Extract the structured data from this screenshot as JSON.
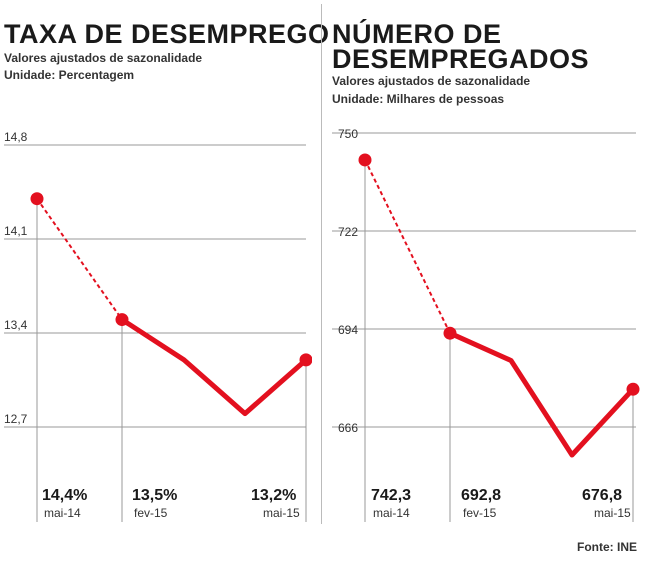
{
  "source": "Fonte: INE",
  "chart_data": [
    {
      "type": "line",
      "title": "TAXA DE DESEMPREGO",
      "subtitle": "Valores ajustados de sazonalidade",
      "unit": "Unidade: Percentagem",
      "y_ticks": [
        "14,8",
        "14,1",
        "13,4",
        "12,7"
      ],
      "ylim": [
        12.7,
        14.8
      ],
      "dashed_until_index": 1,
      "points": [
        14.4,
        13.5,
        13.2,
        12.8,
        13.2
      ],
      "labels": [
        {
          "value": "14,4%",
          "date": "mai-14",
          "index": 0
        },
        {
          "value": "13,5%",
          "date": "fev-15",
          "index": 1
        },
        {
          "value": "13,2%",
          "date": "mai-15",
          "index": 4
        }
      ],
      "line_color": "#e3101f"
    },
    {
      "type": "line",
      "title": [
        "NÚMERO DE",
        "DESEMPREGADOS"
      ],
      "subtitle": "Valores ajustados de sazonalidade",
      "unit": "Unidade: Milhares de pessoas",
      "y_ticks": [
        "750",
        "722",
        "694",
        "666"
      ],
      "ylim": [
        666,
        750
      ],
      "dashed_until_index": 1,
      "points": [
        742.3,
        692.8,
        685,
        658,
        676.8
      ],
      "labels": [
        {
          "value": "742,3",
          "date": "mai-14",
          "index": 0
        },
        {
          "value": "692,8",
          "date": "fev-15",
          "index": 1
        },
        {
          "value": "676,8",
          "date": "mai-15",
          "index": 4
        }
      ],
      "line_color": "#e3101f"
    }
  ]
}
